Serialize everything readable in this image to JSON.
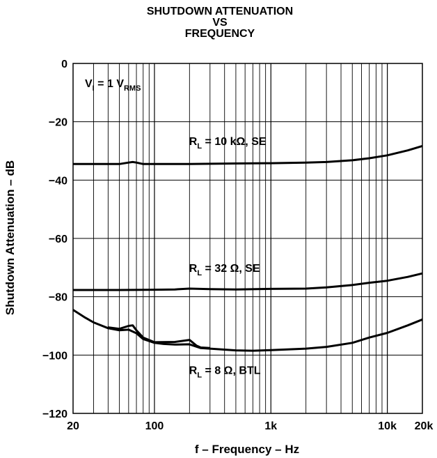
{
  "chart_data": {
    "type": "line",
    "title": [
      "SHUTDOWN ATTENUATION",
      "VS",
      "FREQUENCY"
    ],
    "xlabel": "f – Frequency – Hz",
    "ylabel": "Shutdown Attenuation – dB",
    "xscale": "log",
    "xlim": [
      20,
      20000
    ],
    "ylim": [
      -120,
      0
    ],
    "grid": true,
    "x_ticks": [
      {
        "value": 20,
        "label": "20"
      },
      {
        "value": 100,
        "label": "100"
      },
      {
        "value": 1000,
        "label": "1k"
      },
      {
        "value": 10000,
        "label": "10k"
      },
      {
        "value": 20000,
        "label": "20k"
      }
    ],
    "y_ticks": [
      {
        "value": 0,
        "label": "0"
      },
      {
        "value": -20,
        "label": "−20"
      },
      {
        "value": -40,
        "label": "−40"
      },
      {
        "value": -60,
        "label": "−60"
      },
      {
        "value": -80,
        "label": "−80"
      },
      {
        "value": -100,
        "label": "−100"
      },
      {
        "value": -120,
        "label": "−120"
      }
    ],
    "condition": {
      "main": "V",
      "sub": "I",
      "rest": " = 1 V",
      "sub2": "RMS"
    },
    "series": [
      {
        "label": {
          "main": "R",
          "sub": "L",
          "rest": " = 10 kΩ, SE"
        },
        "label_at": {
          "x": 300,
          "y": -28
        },
        "points": [
          [
            20,
            -34.5
          ],
          [
            30,
            -34.5
          ],
          [
            50,
            -34.5
          ],
          [
            60,
            -34
          ],
          [
            65,
            -33.8
          ],
          [
            70,
            -34
          ],
          [
            80,
            -34.5
          ],
          [
            100,
            -34.5
          ],
          [
            200,
            -34.5
          ],
          [
            500,
            -34.3
          ],
          [
            1000,
            -34.2
          ],
          [
            2000,
            -34
          ],
          [
            3000,
            -33.8
          ],
          [
            5000,
            -33.2
          ],
          [
            7000,
            -32.5
          ],
          [
            10000,
            -31.5
          ],
          [
            15000,
            -29.8
          ],
          [
            20000,
            -28.3
          ]
        ]
      },
      {
        "label": {
          "main": "R",
          "sub": "L",
          "rest": " = 32 Ω, SE"
        },
        "label_at": {
          "x": 300,
          "y": -71.5
        },
        "points": [
          [
            20,
            -77.7
          ],
          [
            50,
            -77.7
          ],
          [
            100,
            -77.6
          ],
          [
            150,
            -77.5
          ],
          [
            200,
            -77.2
          ],
          [
            300,
            -77.4
          ],
          [
            500,
            -77.5
          ],
          [
            1000,
            -77.3
          ],
          [
            2000,
            -77.2
          ],
          [
            3000,
            -76.8
          ],
          [
            5000,
            -76
          ],
          [
            7000,
            -75.2
          ],
          [
            10000,
            -74.5
          ],
          [
            15000,
            -73.2
          ],
          [
            20000,
            -72
          ]
        ]
      },
      {
        "label": {
          "main": "R",
          "sub": "L",
          "rest": " = 8 Ω, BTL"
        },
        "label_at": {
          "x": 300,
          "y": -106.5
        },
        "points": [
          [
            20,
            -84.5
          ],
          [
            25,
            -87
          ],
          [
            30,
            -88.8
          ],
          [
            40,
            -90.8
          ],
          [
            50,
            -91.5
          ],
          [
            60,
            -91.3
          ],
          [
            70,
            -92.5
          ],
          [
            80,
            -94.5
          ],
          [
            100,
            -95.8
          ],
          [
            120,
            -96.2
          ],
          [
            150,
            -96.4
          ],
          [
            200,
            -96.3
          ],
          [
            250,
            -97.6
          ],
          [
            300,
            -97.8
          ],
          [
            500,
            -98.4
          ],
          [
            700,
            -98.5
          ],
          [
            1000,
            -98.3
          ],
          [
            2000,
            -97.8
          ],
          [
            3000,
            -97.2
          ],
          [
            5000,
            -95.8
          ],
          [
            7000,
            -94
          ],
          [
            10000,
            -92.4
          ],
          [
            15000,
            -89.8
          ],
          [
            20000,
            -87.8
          ]
        ]
      },
      {
        "label": null,
        "points": [
          [
            40,
            -90.5
          ],
          [
            50,
            -91
          ],
          [
            60,
            -90
          ],
          [
            65,
            -89.8
          ],
          [
            70,
            -91.5
          ],
          [
            80,
            -94
          ],
          [
            100,
            -95.6
          ],
          [
            150,
            -95.5
          ],
          [
            200,
            -94.8
          ],
          [
            230,
            -96.8
          ],
          [
            250,
            -97.4
          ],
          [
            300,
            -97.6
          ]
        ]
      }
    ]
  }
}
